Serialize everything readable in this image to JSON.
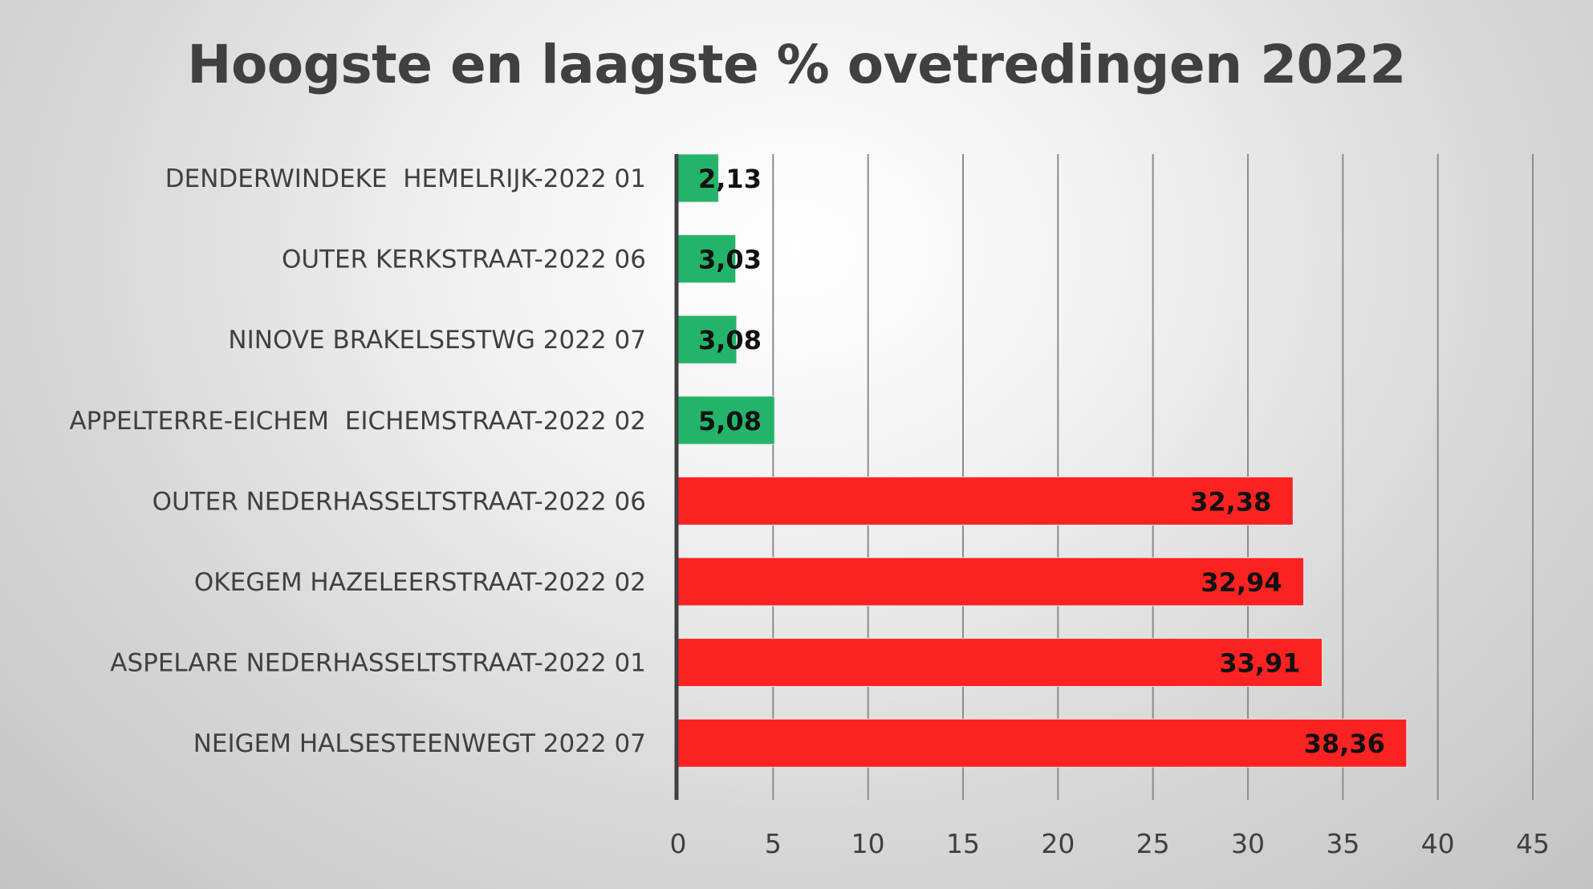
{
  "chart_data": {
    "type": "bar",
    "orientation": "horizontal",
    "title": "Hoogste en laagste % ovetredingen 2022",
    "xlabel": "",
    "ylabel": "",
    "xlim": [
      0,
      45
    ],
    "x_ticks": [
      "0",
      "5",
      "10",
      "15",
      "20",
      "25",
      "30",
      "35",
      "40",
      "45"
    ],
    "grid": true,
    "legend": "none",
    "categories": [
      "DENDERWINDEKE  HEMELRIJK-2022 01",
      "OUTER KERKSTRAAT-2022 06",
      "NINOVE BRAKELSESTWG 2022 07",
      "APPELTERRE-EICHEM  EICHEMSTRAAT-2022 02",
      "OUTER NEDERHASSELTSTRAAT-2022 06",
      "OKEGEM HAZELEERSTRAAT-2022 02",
      "ASPELARE NEDERHASSELTSTRAAT-2022 01",
      "NEIGEM HALSESTEENWEGT 2022 07"
    ],
    "values": [
      2.13,
      3.03,
      3.08,
      5.08,
      32.38,
      32.94,
      33.91,
      38.36
    ],
    "data_labels": [
      "2,13",
      "3,03",
      "3,08",
      "5,08",
      "32,38",
      "32,94",
      "33,91",
      "38,36"
    ],
    "bar_colors": [
      "#23b46a",
      "#23b46a",
      "#23b46a",
      "#23b46a",
      "#fb2222",
      "#fb2222",
      "#fb2222",
      "#fb2222"
    ]
  }
}
